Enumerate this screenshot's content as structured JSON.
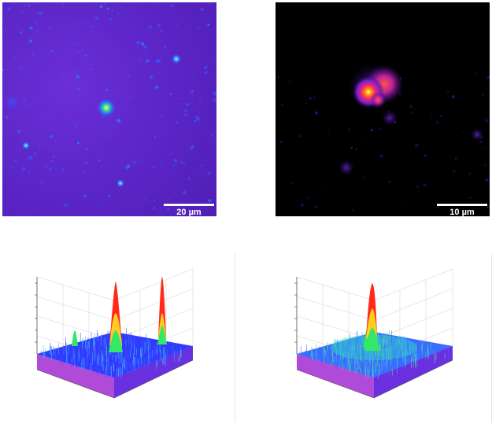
{
  "panels": {
    "top_left": {
      "scale_bar_label": "20 µm"
    },
    "top_right": {
      "scale_bar_label": "10 µm"
    }
  },
  "colors": {
    "field_purple": "#5a24c4",
    "hotspot_yellow": "#ffee44",
    "hotspot_red": "#ff3300",
    "surface_blue": "#3344ff",
    "surface_green": "#22dd66"
  }
}
